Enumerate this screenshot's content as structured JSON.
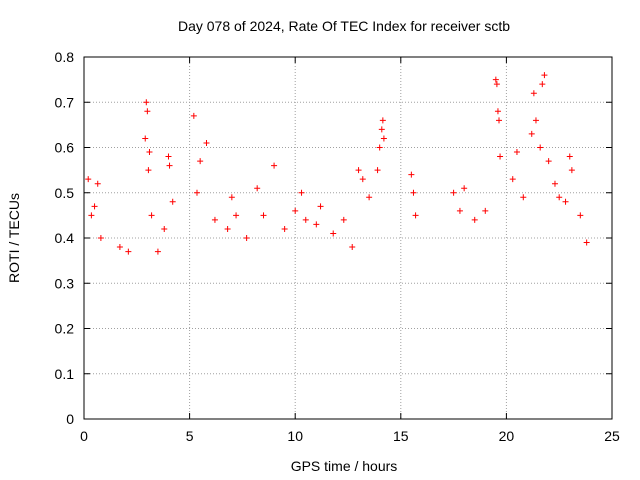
{
  "chart_data": {
    "type": "scatter",
    "title": "Day 078 of 2024, Rate Of TEC Index for receiver sctb",
    "xlabel": "GPS time / hours",
    "ylabel": "ROTI / TECUs",
    "xlim": [
      0,
      25
    ],
    "ylim": [
      0,
      0.8
    ],
    "x_ticks": [
      "0",
      "5",
      "10",
      "15",
      "20",
      "25"
    ],
    "y_ticks": [
      "0",
      "0.1",
      "0.2",
      "0.3",
      "0.4",
      "0.5",
      "0.6",
      "0.7",
      "0.8"
    ],
    "grid": true,
    "marker": "+",
    "color": "#ff0000",
    "series": [
      {
        "x": [
          0.2,
          0.35,
          0.5,
          0.65,
          0.8,
          1.7,
          2.1,
          2.9,
          2.95,
          3.0,
          3.05,
          3.1,
          3.2,
          3.5,
          3.8,
          4.0,
          4.05,
          4.2,
          5.2,
          5.35,
          5.5,
          5.8,
          6.2,
          6.8,
          7.0,
          7.2,
          7.7,
          8.2,
          8.5,
          9.0,
          9.5,
          10.0,
          10.3,
          10.5,
          11.0,
          11.2,
          11.8,
          12.3,
          12.7,
          13.0,
          13.2,
          13.5,
          13.9,
          14.0,
          14.1,
          14.15,
          14.2,
          15.5,
          15.6,
          15.7,
          17.5,
          17.8,
          18.0,
          18.5,
          19.0,
          19.5,
          19.55,
          19.6,
          19.65,
          19.7,
          20.3,
          20.5,
          20.8,
          21.2,
          21.3,
          21.4,
          21.6,
          21.7,
          21.8,
          22.0,
          22.3,
          22.5,
          22.8,
          23.0,
          23.1,
          23.5,
          23.8
        ],
        "y": [
          0.53,
          0.45,
          0.47,
          0.52,
          0.4,
          0.38,
          0.37,
          0.62,
          0.7,
          0.68,
          0.55,
          0.59,
          0.45,
          0.37,
          0.42,
          0.58,
          0.56,
          0.48,
          0.67,
          0.5,
          0.57,
          0.61,
          0.44,
          0.42,
          0.49,
          0.45,
          0.4,
          0.51,
          0.45,
          0.56,
          0.42,
          0.46,
          0.5,
          0.44,
          0.43,
          0.47,
          0.41,
          0.44,
          0.38,
          0.55,
          0.53,
          0.49,
          0.55,
          0.6,
          0.64,
          0.66,
          0.62,
          0.54,
          0.5,
          0.45,
          0.5,
          0.46,
          0.51,
          0.44,
          0.46,
          0.75,
          0.74,
          0.68,
          0.66,
          0.58,
          0.53,
          0.59,
          0.49,
          0.63,
          0.72,
          0.66,
          0.6,
          0.74,
          0.76,
          0.57,
          0.52,
          0.49,
          0.48,
          0.58,
          0.55,
          0.45,
          0.39
        ]
      }
    ]
  }
}
